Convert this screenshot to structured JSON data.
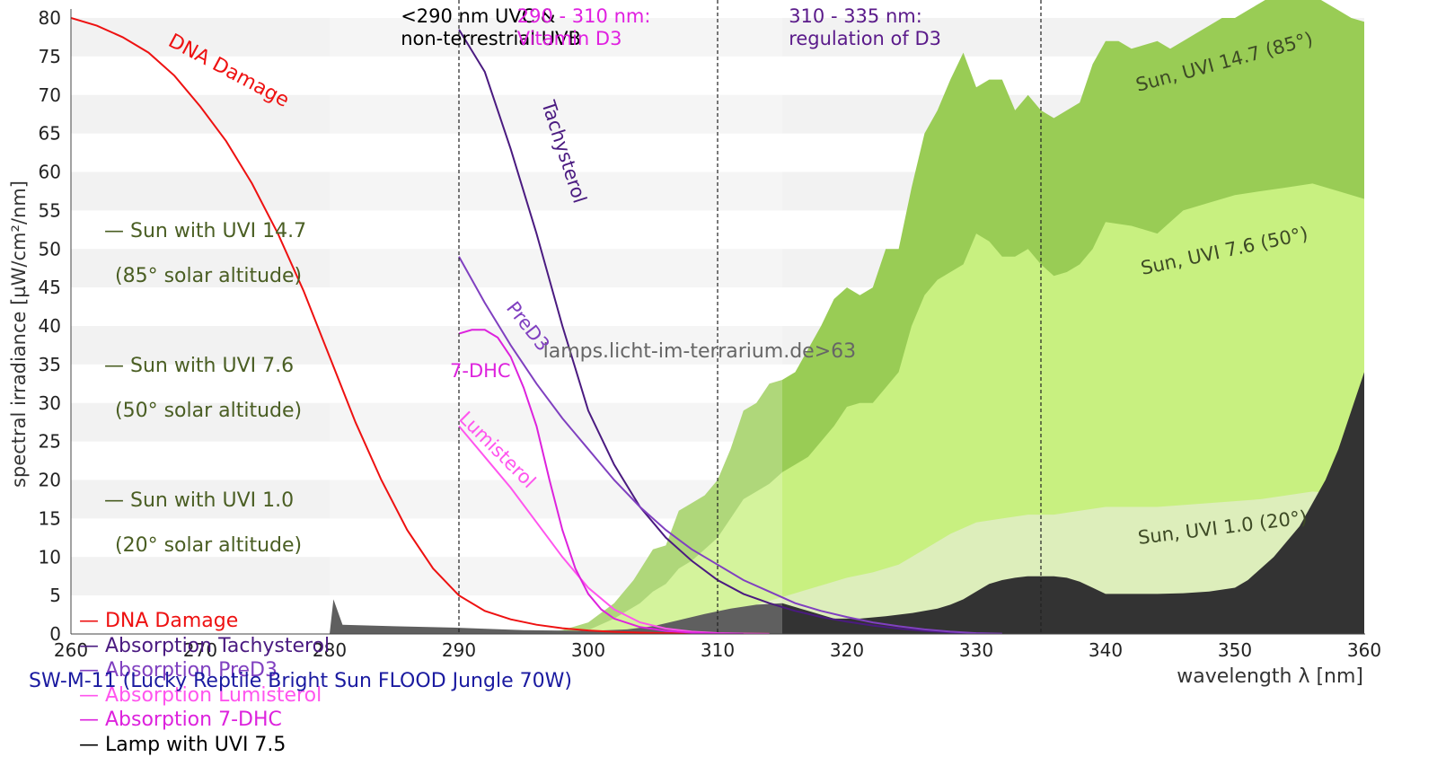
{
  "chart_data": {
    "type": "area",
    "title": "SW-M-11 (Lucky Reptile Bright Sun FLOOD Jungle 70W)",
    "xlabel": "wavelength λ [nm]",
    "ylabel": "spectral irradiance [µW/cm²/nm]",
    "xlim": [
      260,
      360
    ],
    "ylim": [
      0,
      80
    ],
    "xticks": [
      260,
      270,
      280,
      290,
      300,
      310,
      320,
      330,
      340,
      350,
      360
    ],
    "yticks": [
      0,
      5,
      10,
      15,
      20,
      25,
      30,
      35,
      40,
      45,
      50,
      55,
      60,
      65,
      70,
      75,
      80
    ],
    "grid": "horizontal bands",
    "legend_position": "left",
    "region_lines": [
      290,
      310,
      335
    ],
    "region_labels": [
      {
        "text_line1": "<290 nm UVC &",
        "text_line2": "non-terrestrial UVB",
        "x": 285.5,
        "color": "#000000"
      },
      {
        "text_line1": "290 - 310 nm:",
        "text_line2": "Vitamin D3",
        "x": 294.5,
        "color": "#e020e0"
      },
      {
        "text_line1": "310 - 335 nm:",
        "text_line2": "regulation of D3",
        "x": 315.5,
        "color": "#5a1a8a"
      }
    ],
    "watermark": "lamps.licht-im-terrarium.de>63",
    "series": [
      {
        "name": "Sun with UVI 14.7 (85° solar altitude)",
        "kind": "area",
        "color": "#99cc55",
        "label": "Sun, UVI 14.7 (85°)",
        "x": [
          296,
          298,
          300,
          302,
          303.5,
          305,
          306,
          307,
          308,
          309,
          310,
          311,
          312,
          313,
          314,
          315,
          316,
          317,
          318,
          319,
          320,
          321,
          322,
          323,
          324,
          325,
          326,
          327,
          328,
          329,
          330,
          331,
          332,
          333,
          334,
          335,
          336,
          337,
          338,
          339,
          340,
          341,
          342,
          343,
          344,
          345,
          346,
          347,
          348,
          349,
          350,
          351,
          352,
          353,
          354,
          355,
          356,
          357,
          358,
          359,
          360
        ],
        "y": [
          0,
          0.5,
          1.5,
          4,
          7,
          11,
          11.5,
          16,
          17,
          18,
          20,
          24,
          29,
          30,
          32.5,
          33,
          34,
          37,
          40,
          43.5,
          45,
          44,
          45,
          50,
          50,
          58,
          65,
          68,
          72,
          75.5,
          71,
          72,
          72,
          68,
          70,
          68,
          67,
          68,
          69,
          74,
          77,
          77,
          76,
          76.5,
          77,
          76,
          77,
          78,
          79,
          80,
          80,
          81,
          82,
          83,
          84,
          84,
          83,
          82,
          81,
          80,
          79.5
        ]
      },
      {
        "name": "Sun with UVI 7.6 (50° solar altitude)",
        "kind": "area",
        "color": "#c8f080",
        "label": "Sun, UVI 7.6 (50°)",
        "x": [
          298,
          300,
          302,
          304,
          305,
          306,
          307,
          308,
          309,
          310,
          311,
          312,
          313,
          314,
          315,
          316,
          317,
          318,
          319,
          320,
          321,
          322,
          323,
          324,
          325,
          326,
          327,
          328,
          329,
          330,
          331,
          332,
          333,
          334,
          335,
          336,
          337,
          338,
          339,
          340,
          342,
          344,
          346,
          348,
          350,
          352,
          354,
          356,
          358,
          360
        ],
        "y": [
          0,
          0.5,
          2,
          4,
          5.5,
          6.5,
          8.5,
          9.5,
          11,
          12.5,
          15,
          17.5,
          18.5,
          19.5,
          21,
          22,
          23,
          25,
          27,
          29.5,
          30,
          30,
          32,
          34,
          40,
          44,
          46,
          47,
          48,
          52,
          51,
          49,
          49,
          50,
          48,
          46.5,
          47,
          48,
          50,
          53.5,
          53,
          52,
          55,
          56,
          57,
          57.5,
          58,
          58.5,
          57.5,
          56.5
        ]
      },
      {
        "name": "Sun with UVI 1.0 (20° solar altitude)",
        "kind": "area",
        "color": "#ddeebb",
        "label": "Sun, UVI 1.0 (20°)",
        "x": [
          302,
          304,
          306,
          308,
          310,
          312,
          314,
          316,
          318,
          320,
          322,
          324,
          326,
          328,
          330,
          332,
          334,
          336,
          338,
          340,
          344,
          348,
          352,
          356,
          360
        ],
        "y": [
          0,
          0.3,
          0.8,
          1.5,
          2.3,
          3.3,
          4.3,
          5.3,
          6.3,
          7.3,
          8,
          9,
          11,
          13,
          14.5,
          15,
          15.5,
          15.5,
          16,
          16.5,
          16.5,
          17,
          17.5,
          18.5,
          18
        ]
      },
      {
        "name": "Lamp with UVI 7.5",
        "kind": "area",
        "color": "#333333",
        "x": [
          280,
          280.3,
          281,
          285,
          290,
          295,
          300,
          303,
          305,
          307,
          309,
          311,
          313,
          315,
          317,
          319,
          321,
          323,
          325,
          327,
          328,
          329,
          330,
          331,
          332,
          333,
          334,
          335,
          336,
          337,
          338,
          339,
          340,
          342,
          344,
          346,
          348,
          350,
          351,
          352,
          353,
          354,
          355,
          356,
          357,
          358,
          359,
          360
        ],
        "y": [
          0,
          4.5,
          1.2,
          1,
          0.8,
          0.5,
          0.4,
          0.6,
          1,
          1.8,
          2.6,
          3.3,
          3.8,
          4,
          3,
          2,
          2,
          2.3,
          2.7,
          3.3,
          3.8,
          4.5,
          5.5,
          6.5,
          7,
          7.3,
          7.5,
          7.5,
          7.5,
          7.3,
          6.8,
          6,
          5.2,
          5.2,
          5.2,
          5.3,
          5.5,
          6,
          7,
          8.5,
          10,
          12,
          14,
          17,
          20,
          24,
          29,
          34
        ]
      },
      {
        "name": "DNA Damage",
        "kind": "line",
        "color": "#ee1111",
        "label": "DNA Damage",
        "x": [
          260,
          262,
          264,
          266,
          268,
          270,
          272,
          274,
          276,
          278,
          280,
          282,
          284,
          286,
          288,
          290,
          292,
          294,
          296,
          298,
          300,
          302,
          304,
          306,
          308,
          310,
          312,
          314
        ],
        "y": [
          80,
          79,
          77.5,
          75.5,
          72.5,
          68.5,
          64,
          58.5,
          52,
          44.5,
          36,
          27.5,
          20,
          13.5,
          8.5,
          5,
          3,
          1.9,
          1.2,
          0.75,
          0.45,
          0.28,
          0.17,
          0.1,
          0.06,
          0.04,
          0.02,
          0.01
        ]
      },
      {
        "name": "Absorption Tachysterol",
        "kind": "line",
        "color": "#4a1a80",
        "label": "Tachysterol",
        "x": [
          290,
          292,
          294,
          296,
          298,
          300,
          302,
          304,
          306,
          308,
          310,
          312,
          314,
          316,
          318,
          320,
          322,
          324,
          326,
          328,
          330,
          332
        ],
        "y": [
          78.5,
          73,
          63,
          52,
          40,
          29,
          22,
          16.5,
          12.5,
          9.5,
          7,
          5.2,
          4,
          3,
          2.2,
          1.6,
          1.1,
          0.7,
          0.4,
          0.2,
          0.1,
          0.02
        ]
      },
      {
        "name": "Absorption PreD3",
        "kind": "line",
        "color": "#8040c0",
        "label": "PreD3",
        "x": [
          290,
          292,
          294,
          296,
          298,
          300,
          302,
          304,
          306,
          308,
          310,
          312,
          314,
          316,
          318,
          320,
          322,
          324,
          326,
          328,
          330,
          332
        ],
        "y": [
          49,
          43,
          37.5,
          32.5,
          28,
          24,
          20,
          16.5,
          13.5,
          11,
          9,
          7,
          5.5,
          4,
          3,
          2.2,
          1.5,
          1,
          0.6,
          0.3,
          0.1,
          0.02
        ]
      },
      {
        "name": "Absorption Lumisterol",
        "kind": "line",
        "color": "#ff55ee",
        "label": "Lumisterol",
        "x": [
          290,
          292,
          294,
          296,
          298,
          300,
          302,
          304,
          306,
          308,
          310,
          312,
          314
        ],
        "y": [
          27,
          23,
          19,
          14.5,
          10,
          6,
          3.2,
          1.5,
          0.7,
          0.3,
          0.12,
          0.05,
          0.01
        ]
      },
      {
        "name": "Absorption 7-DHC",
        "kind": "line",
        "color": "#dd22dd",
        "label": "7-DHC",
        "x": [
          290,
          291,
          292,
          293,
          294,
          295,
          296,
          297,
          298,
          299,
          300,
          301,
          302,
          304,
          306,
          308,
          310,
          312
        ],
        "y": [
          39,
          39.5,
          39.5,
          38.5,
          36,
          32,
          27,
          20,
          13.5,
          8.5,
          5.2,
          3.2,
          2,
          0.9,
          0.4,
          0.18,
          0.06,
          0.01
        ]
      }
    ]
  },
  "legend": {
    "items": [
      {
        "line1": "— Sun with UVI 14.7",
        "line2": "(85° solar altitude)",
        "color": "#4a5e23"
      },
      {
        "line1": "— Sun with UVI 7.6",
        "line2": "(50° solar altitude)",
        "color": "#4a5e23"
      },
      {
        "line1": "— Sun with UVI 1.0",
        "line2": "(20° solar altitude)",
        "color": "#4a5e23"
      },
      {
        "line1": "— DNA Damage",
        "color": "#ee1111"
      },
      {
        "line1": "— Absorption Tachysterol",
        "color": "#4a1a80"
      },
      {
        "line1": "— Absorption PreD3",
        "color": "#8040c0"
      },
      {
        "line1": "— Absorption Lumisterol",
        "color": "#ff55ee"
      },
      {
        "line1": "— Absorption 7-DHC",
        "color": "#dd22dd"
      },
      {
        "line1": "— Lamp with UVI 7.5",
        "color": "#000000"
      }
    ]
  }
}
